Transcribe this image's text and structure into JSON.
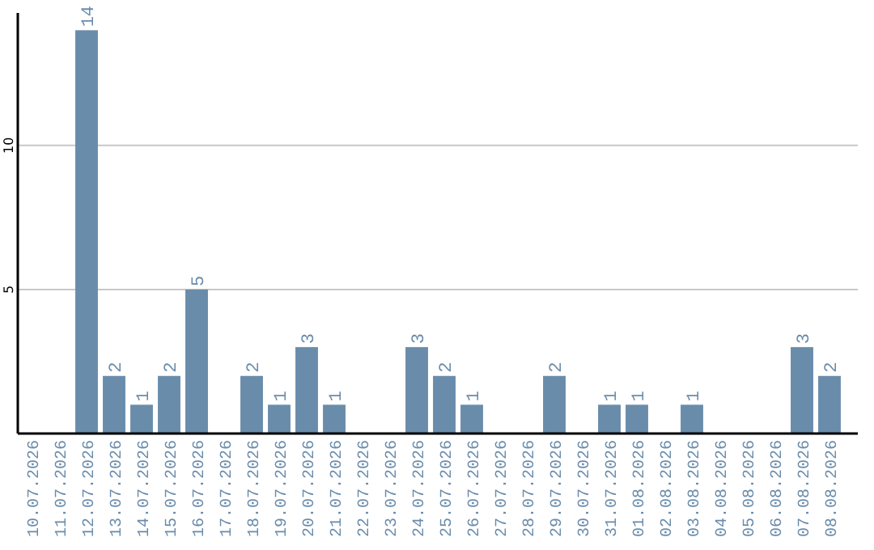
{
  "chart_data": {
    "type": "bar",
    "categories": [
      "10.07.2026",
      "11.07.2026",
      "12.07.2026",
      "13.07.2026",
      "14.07.2026",
      "15.07.2026",
      "16.07.2026",
      "17.07.2026",
      "18.07.2026",
      "19.07.2026",
      "20.07.2026",
      "21.07.2026",
      "22.07.2026",
      "23.07.2026",
      "24.07.2026",
      "25.07.2026",
      "26.07.2026",
      "27.07.2026",
      "28.07.2026",
      "29.07.2026",
      "30.07.2026",
      "31.07.2026",
      "01.08.2026",
      "02.08.2026",
      "03.08.2026",
      "04.08.2026",
      "05.08.2026",
      "06.08.2026",
      "07.08.2026",
      "08.08.2026"
    ],
    "values": [
      0,
      0,
      14,
      2,
      1,
      2,
      5,
      0,
      2,
      1,
      3,
      1,
      0,
      0,
      3,
      2,
      1,
      0,
      0,
      2,
      0,
      1,
      1,
      0,
      1,
      0,
      0,
      0,
      3,
      2
    ],
    "value_labels": [
      null,
      null,
      "14",
      "2",
      "1",
      "2",
      "5",
      null,
      "2",
      "1",
      "3",
      "1",
      null,
      null,
      "3",
      "2",
      "1",
      null,
      null,
      "2",
      null,
      "1",
      "1",
      null,
      "1",
      null,
      null,
      null,
      "3",
      "2"
    ],
    "color": "#6a8cab",
    "ylim": [
      0,
      14.6
    ],
    "yticks": [
      5,
      10
    ],
    "grid": "y"
  }
}
